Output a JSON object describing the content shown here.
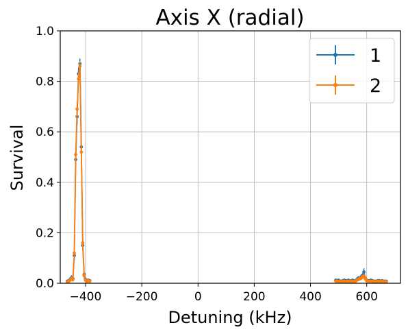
{
  "chart_data": {
    "type": "line",
    "title": "Axis X (radial)",
    "xlabel": "Detuning (kHz)",
    "ylabel": "Survival",
    "xlim": [
      -490,
      720
    ],
    "ylim": [
      0.0,
      1.0
    ],
    "xticks": [
      -400,
      -200,
      0,
      200,
      400,
      600
    ],
    "xtick_labels": [
      "−400",
      "−200",
      "0",
      "200",
      "400",
      "600"
    ],
    "yticks": [
      0.0,
      0.2,
      0.4,
      0.6,
      0.8,
      1.0
    ],
    "ytick_labels": [
      "0.0",
      "0.2",
      "0.4",
      "0.6",
      "0.8",
      "1.0"
    ],
    "grid": true,
    "legend_position": "top-right",
    "markers": "dots with vertical error bars",
    "series": [
      {
        "name": "1",
        "color": "#1f77b4",
        "x": [
          -465,
          -460,
          -455,
          -450,
          -445,
          -440,
          -435,
          -430,
          -425,
          -420,
          -415,
          -410,
          -405,
          -400,
          -395,
          -390,
          -385,
          490,
          495,
          500,
          505,
          510,
          515,
          520,
          525,
          530,
          535,
          540,
          545,
          550,
          555,
          560,
          565,
          570,
          575,
          580,
          585,
          590,
          595,
          600,
          605,
          610,
          615,
          620,
          625,
          630,
          635,
          640,
          645,
          650,
          655,
          660,
          665,
          670
        ],
        "y": [
          0.008,
          0.01,
          0.015,
          0.022,
          0.018,
          0.11,
          0.49,
          0.66,
          0.83,
          0.87,
          0.54,
          0.15,
          0.035,
          0.015,
          0.01,
          0.012,
          0.01,
          0.012,
          0.01,
          0.012,
          0.008,
          0.008,
          0.01,
          0.012,
          0.01,
          0.01,
          0.012,
          0.008,
          0.01,
          0.012,
          0.008,
          0.01,
          0.015,
          0.02,
          0.02,
          0.025,
          0.03,
          0.045,
          0.02,
          0.012,
          0.01,
          0.01,
          0.012,
          0.01,
          0.008,
          0.008,
          0.008,
          0.01,
          0.01,
          0.008,
          0.01,
          0.008,
          0.008,
          0.008
        ],
        "yerr": [
          0.006,
          0.006,
          0.008,
          0.01,
          0.01,
          0.02,
          0.03,
          0.03,
          0.025,
          0.02,
          0.03,
          0.02,
          0.012,
          0.008,
          0.006,
          0.006,
          0.006,
          0.006,
          0.006,
          0.006,
          0.005,
          0.005,
          0.006,
          0.006,
          0.006,
          0.006,
          0.006,
          0.005,
          0.006,
          0.006,
          0.005,
          0.006,
          0.008,
          0.008,
          0.008,
          0.01,
          0.01,
          0.014,
          0.008,
          0.006,
          0.006,
          0.006,
          0.006,
          0.006,
          0.005,
          0.005,
          0.005,
          0.006,
          0.006,
          0.005,
          0.006,
          0.005,
          0.005,
          0.005
        ]
      },
      {
        "name": "2",
        "color": "#ff7f0e",
        "x": [
          -465,
          -460,
          -455,
          -450,
          -445,
          -440,
          -435,
          -430,
          -425,
          -420,
          -415,
          -410,
          -405,
          -400,
          -395,
          -390,
          -385,
          490,
          495,
          500,
          505,
          510,
          515,
          520,
          525,
          530,
          535,
          540,
          545,
          550,
          555,
          560,
          565,
          570,
          575,
          580,
          585,
          590,
          595,
          600,
          605,
          610,
          615,
          620,
          625,
          630,
          635,
          640,
          645,
          650,
          655,
          660,
          665,
          670
        ],
        "y": [
          0.005,
          0.008,
          0.012,
          0.018,
          0.015,
          0.12,
          0.51,
          0.69,
          0.81,
          0.86,
          0.52,
          0.16,
          0.03,
          0.012,
          0.008,
          0.01,
          0.008,
          0.008,
          0.008,
          0.008,
          0.006,
          0.006,
          0.008,
          0.008,
          0.006,
          0.008,
          0.008,
          0.006,
          0.008,
          0.008,
          0.006,
          0.008,
          0.012,
          0.015,
          0.018,
          0.02,
          0.025,
          0.028,
          0.018,
          0.01,
          0.008,
          0.008,
          0.008,
          0.008,
          0.006,
          0.006,
          0.006,
          0.008,
          0.008,
          0.006,
          0.008,
          0.006,
          0.006,
          0.006
        ],
        "yerr": [
          0.005,
          0.005,
          0.007,
          0.009,
          0.009,
          0.02,
          0.03,
          0.03,
          0.025,
          0.02,
          0.03,
          0.02,
          0.012,
          0.007,
          0.005,
          0.005,
          0.005,
          0.005,
          0.005,
          0.005,
          0.004,
          0.004,
          0.005,
          0.005,
          0.004,
          0.005,
          0.005,
          0.004,
          0.005,
          0.005,
          0.004,
          0.005,
          0.007,
          0.007,
          0.008,
          0.008,
          0.009,
          0.01,
          0.008,
          0.005,
          0.005,
          0.005,
          0.005,
          0.005,
          0.004,
          0.004,
          0.004,
          0.005,
          0.005,
          0.004,
          0.005,
          0.004,
          0.004,
          0.004
        ]
      }
    ]
  }
}
